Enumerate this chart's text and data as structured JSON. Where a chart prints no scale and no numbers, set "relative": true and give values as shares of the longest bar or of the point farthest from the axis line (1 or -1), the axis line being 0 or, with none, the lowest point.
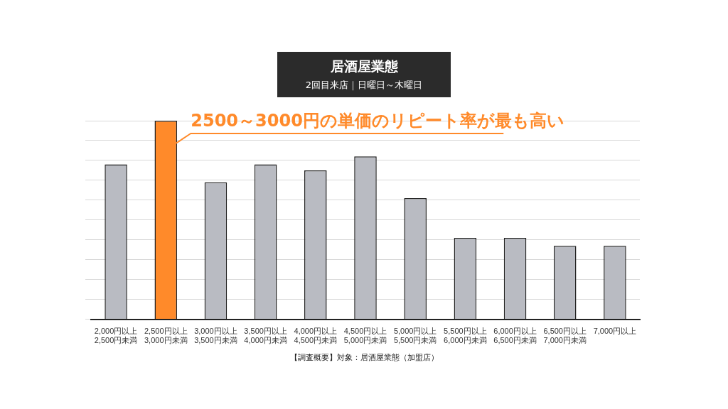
{
  "chart_data": {
    "type": "bar",
    "title": "居酒屋業態",
    "subtitle": "2回目来店｜日曜日～木曜日",
    "categories": [
      "2,000円以上\n2,500円未満",
      "2,500円以上\n3,000円未満",
      "3,000円以上\n3,500円未満",
      "3,500円以上\n4,000円未満",
      "4,000円以上\n4,500円未満",
      "4,500円以上\n5,000円未満",
      "5,000円以上\n5,500円未満",
      "5,500円以上\n6,000円未満",
      "6,000円以上\n6,500円未満",
      "6,500円以上\n7,000円未満",
      "7,000円以上"
    ],
    "values": [
      0.78,
      1,
      0.69,
      0.78,
      0.75,
      0.82,
      0.61,
      0.41,
      0.41,
      0.37,
      0.37
    ],
    "colors": [
      "#b9bbc2",
      "#ff8a2a",
      "#b9bbc2",
      "#b9bbc2",
      "#b9bbc2",
      "#b9bbc2",
      "#b9bbc2",
      "#b9bbc2",
      "#b9bbc2",
      "#b9bbc2",
      "#b9bbc2"
    ],
    "relative": true,
    "grid": true,
    "annotations": [
      {
        "text": "2500～3000円の単価のリピート率が最も高い",
        "x": "2,500円以上\n3,000円未満",
        "y": 1
      },
      "【調査概要】対象：居酒屋業態（加盟店）"
    ]
  }
}
